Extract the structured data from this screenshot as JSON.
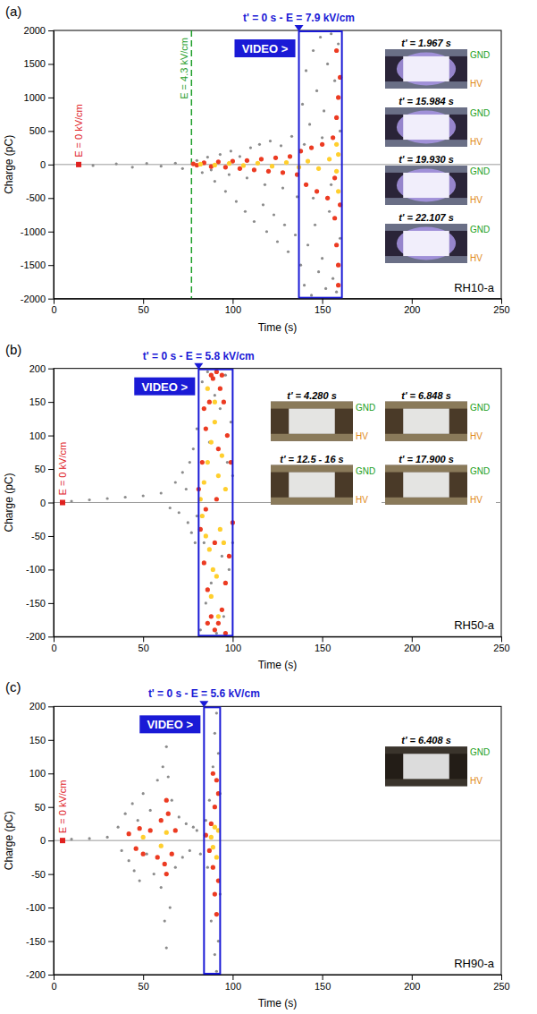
{
  "chart_data": [
    {
      "type": "scatter",
      "panel": "(a)",
      "tag": "RH10-a",
      "x_label": "Time (s)",
      "y_label": "Charge (pC)",
      "xlim": [
        0,
        250
      ],
      "xticks": [
        0,
        50,
        100,
        150,
        200,
        250
      ],
      "ylim": [
        -2000,
        2000
      ],
      "yticks": [
        -2000,
        -1500,
        -1000,
        -500,
        0,
        500,
        1000,
        1500,
        2000
      ],
      "hlines": [
        0
      ],
      "annotations": [
        {
          "text": "E = 0 kV/cm",
          "x": 14,
          "y": 0,
          "color": "#e0211f",
          "marker": "square"
        },
        {
          "text": "E = 4.3 kV/cm",
          "x": 77,
          "color": "#1e9e2a",
          "line_style": "dashed"
        }
      ],
      "video": {
        "text": "t' = 0 s - E = 7.9 kV/cm",
        "x_range": [
          137,
          161
        ],
        "button": "VIDEO >",
        "color": "#1a1ad6"
      },
      "frames": [
        "t' = 1.967 s",
        "t' = 15.984 s",
        "t' = 19.930 s",
        "t' = 22.107 s"
      ],
      "electrodes": {
        "top": "GND",
        "bottom": "HV"
      },
      "series": [
        {
          "color": "#8c8c8c",
          "marker": "circle",
          "x": [
            22,
            35,
            44,
            52,
            60,
            68,
            72,
            80,
            83,
            86,
            90,
            93,
            96,
            99,
            102,
            104,
            107,
            110,
            112,
            115,
            117,
            119,
            121,
            123,
            125,
            127,
            129,
            131,
            133,
            135,
            136,
            128,
            118,
            108,
            98,
            88,
            138,
            139,
            140,
            141,
            142,
            143,
            144,
            145,
            146,
            147,
            148,
            149,
            150,
            151,
            152,
            153,
            154,
            155,
            156,
            157,
            158,
            159,
            160,
            160,
            155,
            150,
            145,
            140
          ],
          "values": [
            -15,
            10,
            -40,
            15,
            -25,
            20,
            -60,
            60,
            -120,
            110,
            -250,
            150,
            -400,
            200,
            -550,
            120,
            -700,
            250,
            -850,
            300,
            -600,
            -1000,
            350,
            -750,
            -1150,
            280,
            -900,
            -1300,
            420,
            -1050,
            -480,
            -350,
            -300,
            -200,
            -150,
            -80,
            -1500,
            900,
            -1800,
            1400,
            -1200,
            600,
            -1950,
            1700,
            -900,
            1100,
            -1600,
            1900,
            -1400,
            800,
            -1850,
            1500,
            -700,
            1950,
            -1700,
            1250,
            -1900,
            1800,
            -1100,
            500,
            -300,
            400,
            -500,
            300
          ]
        },
        {
          "color": "#ec3b22",
          "marker": "circle",
          "x": [
            78,
            80,
            84,
            88,
            92,
            96,
            100,
            104,
            108,
            112,
            116,
            120,
            124,
            128,
            132,
            136,
            138,
            141,
            144,
            147,
            150,
            153,
            156,
            157,
            158,
            158,
            159,
            159,
            160,
            159,
            158,
            157,
            160
          ],
          "values": [
            10,
            -10,
            25,
            -30,
            40,
            -40,
            50,
            -60,
            60,
            -80,
            80,
            -100,
            100,
            -120,
            120,
            -150,
            200,
            -300,
            250,
            -400,
            300,
            -500,
            400,
            -800,
            700,
            -1200,
            1000,
            -1500,
            1300,
            -1800,
            1700,
            -200,
            -600
          ]
        },
        {
          "color": "#ffcf2e",
          "marker": "circle",
          "x": [
            82,
            90,
            98,
            106,
            114,
            122,
            130,
            137,
            142,
            148,
            154,
            158,
            159,
            158,
            159
          ],
          "values": [
            5,
            -8,
            15,
            -15,
            20,
            -25,
            30,
            -40,
            50,
            -60,
            80,
            -100,
            150,
            300,
            -400
          ]
        }
      ]
    },
    {
      "type": "scatter",
      "panel": "(b)",
      "tag": "RH50-a",
      "x_label": "Time (s)",
      "y_label": "Charge (pC)",
      "xlim": [
        0,
        250
      ],
      "xticks": [
        0,
        50,
        100,
        150,
        200,
        250
      ],
      "ylim": [
        -200,
        200
      ],
      "yticks": [
        -200,
        -150,
        -100,
        -50,
        0,
        50,
        100,
        150,
        200
      ],
      "hlines": [
        0
      ],
      "annotations": [
        {
          "text": "E = 0 kV/cm",
          "x": 5,
          "y": 0,
          "color": "#e0211f",
          "marker": "square"
        }
      ],
      "video": {
        "text": "t' = 0 s - E = 5.8 kV/cm",
        "x_range": [
          81,
          100
        ],
        "button": "VIDEO >",
        "color": "#1a1ad6"
      },
      "frames": [
        "t' = 4.280 s",
        "t' = 6.848 s",
        "t' = 12.5 - 16 s",
        "t' = 17.900 s"
      ],
      "electrodes": {
        "top": "GND",
        "bottom": "HV"
      },
      "series": [
        {
          "color": "#8c8c8c",
          "marker": "circle",
          "x": [
            10,
            20,
            30,
            40,
            50,
            60,
            65,
            68,
            70,
            72,
            74,
            75,
            76,
            77,
            78,
            79,
            80,
            80,
            82,
            83,
            85,
            86,
            88,
            90,
            91,
            93,
            95,
            96,
            98,
            99,
            100,
            100,
            97,
            94,
            87,
            84
          ],
          "values": [
            2,
            4,
            6,
            8,
            10,
            14,
            -8,
            30,
            -15,
            45,
            20,
            -30,
            60,
            -45,
            80,
            -60,
            110,
            -20,
            -190,
            180,
            -150,
            195,
            -120,
            160,
            -195,
            140,
            -170,
            190,
            -100,
            120,
            -60,
            40,
            60,
            -80,
            90,
            -60
          ]
        },
        {
          "color": "#ec3b22",
          "marker": "circle",
          "x": [
            81,
            82,
            83,
            84,
            85,
            86,
            87,
            88,
            89,
            90,
            91,
            92,
            93,
            94,
            95,
            96,
            97,
            98,
            99,
            100,
            84,
            86,
            88,
            90,
            92,
            94,
            96,
            85,
            91
          ],
          "values": [
            20,
            -40,
            60,
            -90,
            110,
            -130,
            150,
            -170,
            185,
            -190,
            195,
            -180,
            170,
            -160,
            150,
            -120,
            100,
            -80,
            60,
            -30,
            140,
            -180,
            190,
            -60,
            80,
            190,
            -195,
            -10,
            5
          ]
        },
        {
          "color": "#ffcf2e",
          "marker": "circle",
          "x": [
            82,
            83,
            84,
            85,
            86,
            87,
            88,
            89,
            90,
            91,
            92,
            93,
            94,
            95,
            96,
            88,
            90,
            86,
            92
          ],
          "values": [
            5,
            -20,
            30,
            -50,
            60,
            -70,
            90,
            -100,
            120,
            -110,
            40,
            -40,
            70,
            -60,
            20,
            -140,
            150,
            170,
            -170
          ]
        }
      ]
    },
    {
      "type": "scatter",
      "panel": "(c)",
      "tag": "RH90-a",
      "x_label": "Time (s)",
      "y_label": "Charge (pC)",
      "xlim": [
        0,
        250
      ],
      "xticks": [
        0,
        50,
        100,
        150,
        200,
        250
      ],
      "ylim": [
        -200,
        200
      ],
      "yticks": [
        -200,
        -150,
        -100,
        -50,
        0,
        50,
        100,
        150,
        200
      ],
      "hlines": [
        0
      ],
      "annotations": [
        {
          "text": "E = 0 kV/cm",
          "x": 5,
          "y": 0,
          "color": "#e0211f",
          "marker": "square"
        }
      ],
      "video": {
        "text": "t' = 0 s - E = 5.6 kV/cm",
        "x_range": [
          84,
          93
        ],
        "button": "VIDEO >",
        "color": "#1a1ad6"
      },
      "frames": [
        "t' = 6.408 s"
      ],
      "electrodes": {
        "top": "GND",
        "bottom": "HV"
      },
      "series": [
        {
          "color": "#8c8c8c",
          "marker": "circle",
          "x": [
            10,
            20,
            30,
            36,
            38,
            40,
            42,
            44,
            45,
            47,
            48,
            50,
            52,
            54,
            56,
            58,
            60,
            61,
            62,
            63,
            63,
            64,
            65,
            66,
            68,
            70,
            72,
            74,
            76,
            78,
            80,
            82,
            85,
            86,
            87,
            88,
            89,
            90,
            90,
            91,
            91,
            92,
            92,
            93,
            93
          ],
          "values": [
            2,
            3,
            5,
            20,
            -15,
            40,
            -30,
            55,
            -45,
            30,
            -60,
            70,
            -20,
            45,
            -50,
            90,
            -70,
            110,
            -120,
            140,
            -160,
            95,
            -100,
            60,
            -40,
            35,
            -25,
            25,
            -15,
            20,
            15,
            -20,
            30,
            -40,
            60,
            -120,
            110,
            -170,
            160,
            -195,
            190,
            -150,
            130,
            -80,
            70
          ]
        },
        {
          "color": "#ec3b22",
          "marker": "circle",
          "x": [
            42,
            46,
            48,
            50,
            54,
            58,
            60,
            62,
            63,
            63,
            64,
            66,
            68,
            85,
            87,
            88,
            89,
            90,
            90,
            91,
            91,
            92,
            92,
            89
          ],
          "values": [
            10,
            -12,
            18,
            -20,
            15,
            -25,
            30,
            -35,
            60,
            -50,
            40,
            -20,
            15,
            8,
            -15,
            25,
            -40,
            50,
            -80,
            90,
            -110,
            70,
            -60,
            100
          ]
        },
        {
          "color": "#ffcf2e",
          "marker": "circle",
          "x": [
            50,
            60,
            63,
            88,
            89,
            90,
            91,
            92
          ],
          "values": [
            5,
            -8,
            12,
            5,
            -10,
            20,
            -25,
            15
          ]
        }
      ]
    }
  ]
}
